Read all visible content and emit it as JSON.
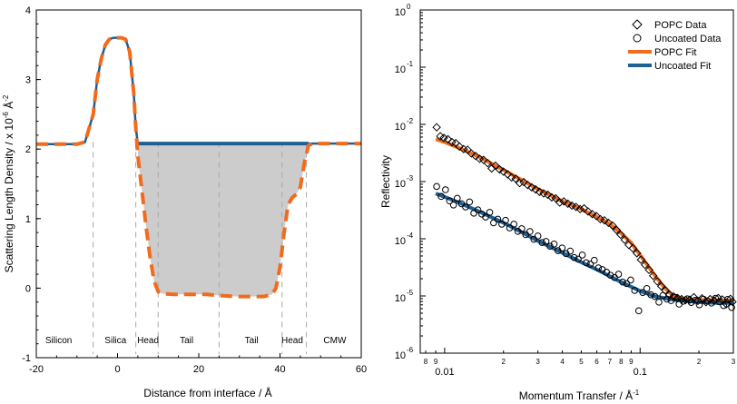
{
  "chart_data": [
    {
      "type": "line",
      "xlabel": "Distance from interface / Å",
      "ylabel": "Scattering Length Density / x 10",
      "ylabel_exp": "-6",
      "ylabel_unit": " Å",
      "ylabel_unit_exp": "-2",
      "xlim": [
        -20,
        60
      ],
      "ylim": [
        -1,
        4
      ],
      "xticks": [
        -20,
        0,
        20,
        40,
        60
      ],
      "yticks": [
        -1,
        0,
        1,
        2,
        3,
        4
      ],
      "regions": [
        {
          "label": "Silicon",
          "x": -14.5
        },
        {
          "label": "Silica",
          "x": -0.5
        },
        {
          "label": "Head",
          "x": 7.5
        },
        {
          "label": "Tail",
          "x": 17
        },
        {
          "label": "Tail",
          "x": 33
        },
        {
          "label": "Head",
          "x": 43
        },
        {
          "label": "CMW",
          "x": 53.5
        }
      ],
      "boundaries": [
        -6,
        4.5,
        10,
        25,
        40.5,
        46.5
      ],
      "series": [
        {
          "name": "",
          "color": "#1f5f94",
          "style": "solid",
          "x": [
            -20,
            -10,
            -8,
            -6,
            -5,
            -4,
            -3,
            -2,
            -1,
            0,
            1,
            2,
            3,
            4,
            4.5,
            5,
            60
          ],
          "y": [
            2.07,
            2.07,
            2.1,
            2.5,
            3.0,
            3.3,
            3.5,
            3.58,
            3.6,
            3.6,
            3.6,
            3.58,
            3.4,
            2.8,
            2.3,
            2.08,
            2.08
          ]
        },
        {
          "name": "",
          "color": "#f26b1d",
          "style": "dashed",
          "x": [
            -20,
            -10,
            -8,
            -6,
            -5,
            -4,
            -3,
            -2,
            -1,
            0,
            1,
            2,
            3,
            4,
            4.5,
            5,
            6,
            7,
            8,
            9,
            10,
            11,
            14,
            18,
            22,
            26,
            30,
            34,
            36,
            38,
            39,
            40,
            41,
            42,
            43,
            44,
            45,
            46,
            47,
            48,
            60
          ],
          "y": [
            2.07,
            2.07,
            2.1,
            2.5,
            3.0,
            3.3,
            3.5,
            3.58,
            3.6,
            3.6,
            3.6,
            3.58,
            3.4,
            2.8,
            2.3,
            1.9,
            1.4,
            0.9,
            0.45,
            0.1,
            -0.05,
            -0.08,
            -0.09,
            -0.09,
            -0.09,
            -0.11,
            -0.12,
            -0.12,
            -0.12,
            -0.09,
            0.0,
            0.3,
            0.8,
            1.2,
            1.3,
            1.35,
            1.45,
            1.8,
            2.05,
            2.08,
            2.08
          ]
        }
      ]
    },
    {
      "type": "scatter",
      "xlabel": "Momentum Transfer / Å",
      "xlabel_exp": "-1",
      "ylabel": "Reflectivity",
      "xscale": "log",
      "yscale": "log",
      "xlim": [
        0.0075,
        0.3
      ],
      "ylim": [
        1e-06,
        1
      ],
      "xmajor": [
        {
          "v": 0.01,
          "label": "0.01"
        },
        {
          "v": 0.1,
          "label": "0.1"
        }
      ],
      "xminor": [
        {
          "v": 0.008,
          "label": "8"
        },
        {
          "v": 0.009,
          "label": "9"
        },
        {
          "v": 0.02,
          "label": "2"
        },
        {
          "v": 0.03,
          "label": "3"
        },
        {
          "v": 0.04,
          "label": "4"
        },
        {
          "v": 0.05,
          "label": "5"
        },
        {
          "v": 0.06,
          "label": "6"
        },
        {
          "v": 0.07,
          "label": "7"
        },
        {
          "v": 0.08,
          "label": "8"
        },
        {
          "v": 0.09,
          "label": "9"
        },
        {
          "v": 0.2,
          "label": "2"
        },
        {
          "v": 0.3,
          "label": "3"
        }
      ],
      "yexps": [
        -6,
        -5,
        -4,
        -3,
        -2,
        -1,
        0
      ],
      "legend_position": "top-right",
      "legend": [
        {
          "label": "POPC Data",
          "marker": "diamond"
        },
        {
          "label": "Uncoated Data",
          "marker": "circle"
        },
        {
          "label": "POPC Fit",
          "color": "#f26b1d"
        },
        {
          "label": "Uncoated Fit",
          "color": "#1f5f94"
        }
      ],
      "series": [
        {
          "name": "POPC Data",
          "marker": "diamond",
          "x": [
            0.0091,
            0.0095,
            0.0099,
            0.0104,
            0.0109,
            0.0114,
            0.0119,
            0.0125,
            0.0131,
            0.0137,
            0.0144,
            0.0151,
            0.0158,
            0.0166,
            0.0174,
            0.0182,
            0.0191,
            0.02,
            0.021,
            0.022,
            0.0231,
            0.0242,
            0.0254,
            0.0266,
            0.0279,
            0.0292,
            0.0306,
            0.0321,
            0.0337,
            0.0353,
            0.037,
            0.0388,
            0.0407,
            0.0427,
            0.0448,
            0.047,
            0.0493,
            0.0517,
            0.0542,
            0.0569,
            0.0597,
            0.0626,
            0.0657,
            0.0689,
            0.0723,
            0.0758,
            0.0795,
            0.0834,
            0.0875,
            0.0918,
            0.0963,
            0.101,
            0.106,
            0.1112,
            0.1167,
            0.1224,
            0.1284,
            0.1347,
            0.1413,
            0.1482,
            0.1555,
            0.1631,
            0.1711,
            0.1795,
            0.1883,
            0.1976,
            0.2073,
            0.2174,
            0.2281,
            0.2393,
            0.251,
            0.2633,
            0.2762,
            0.2898,
            0.3
          ],
          "y": [
            0.0089,
            0.0062,
            0.0058,
            0.0055,
            0.0049,
            0.0047,
            0.0041,
            0.0037,
            0.0036,
            0.0031,
            0.0028,
            0.0025,
            0.0024,
            0.0021,
            0.0017,
            0.0019,
            0.00163,
            0.00149,
            0.00134,
            0.00118,
            0.00112,
            0.00094,
            0.00098,
            0.00087,
            0.00079,
            0.00073,
            0.00066,
            0.00062,
            0.00059,
            0.00053,
            0.00051,
            0.00043,
            0.00045,
            0.00041,
            0.00038,
            0.00036,
            0.00033,
            0.00034,
            0.0003,
            0.00027,
            0.00025,
            0.00022,
            0.00021,
            0.00019,
            0.00017,
            0.000142,
            0.000118,
            9.6e-05,
            7.8e-05,
            6.8e-05,
            5.6e-05,
            4.3e-05,
            3.5e-05,
            2.85e-05,
            2.25e-05,
            1.8e-05,
            1.48e-05,
            1.25e-05,
            1.05e-05,
            9.8e-06,
            9.2e-06,
            8.8e-06,
            8.5e-06,
            8.6e-06,
            9.5e-06,
            8.2e-06,
            9.1e-06,
            7.8e-06,
            8.8e-06,
            8.3e-06,
            9.2e-06,
            8.7e-06,
            7.2e-06,
            8.9e-06,
            7.9e-06
          ]
        },
        {
          "name": "Uncoated Data",
          "marker": "circle",
          "x": [
            0.0091,
            0.0096,
            0.0101,
            0.0106,
            0.0111,
            0.0116,
            0.0122,
            0.0128,
            0.0134,
            0.0141,
            0.0148,
            0.0155,
            0.0162,
            0.017,
            0.0178,
            0.0187,
            0.0196,
            0.0205,
            0.0215,
            0.0226,
            0.0237,
            0.0248,
            0.026,
            0.0273,
            0.0286,
            0.03,
            0.0315,
            0.033,
            0.0346,
            0.0363,
            0.038,
            0.0399,
            0.0418,
            0.0439,
            0.046,
            0.0482,
            0.0506,
            0.053,
            0.0556,
            0.0583,
            0.0612,
            0.0641,
            0.0673,
            0.0705,
            0.074,
            0.0776,
            0.0814,
            0.0853,
            0.0895,
            0.0938,
            0.0984,
            0.1032,
            0.1082,
            0.1135,
            0.119,
            0.1248,
            0.1309,
            0.1373,
            0.144,
            0.151,
            0.1583,
            0.1661,
            0.1741,
            0.1826,
            0.1915,
            0.2009,
            0.2107,
            0.2209,
            0.2317,
            0.243,
            0.2548,
            0.2672,
            0.2803,
            0.294
          ],
          "y": [
            0.00082,
            0.00055,
            0.00072,
            0.00046,
            0.00039,
            0.00051,
            0.00041,
            0.00036,
            0.00044,
            0.00028,
            0.00032,
            0.00027,
            0.00024,
            0.00029,
            0.00019,
            0.00022,
            0.00018,
            0.00021,
            0.000155,
            0.00018,
            0.000135,
            0.00015,
            0.000118,
            0.000134,
            9.8e-05,
            0.000112,
            8.6e-05,
            9e-05,
            7.4e-05,
            8.1e-05,
            6.2e-05,
            6.9e-05,
            5.5e-05,
            6.1e-05,
            4.7e-05,
            4.4e-05,
            5.2e-05,
            3.8e-05,
            3.6e-05,
            4.2e-05,
            3.1e-05,
            2.9e-05,
            2.6e-05,
            2.3e-05,
            2.1e-05,
            2.4e-05,
            1.75e-05,
            1.65e-05,
            1.9e-05,
            1.25e-05,
            5.5e-06,
            1.15e-05,
            1.35e-05,
            1.05e-05,
            9.8e-06,
            7.8e-06,
            1.02e-05,
            8.8e-06,
            8.3e-06,
            9.5e-06,
            7.2e-06,
            8.1e-06,
            8.9e-06,
            7.7e-06,
            8.4e-06,
            7e-06,
            8.8e-06,
            8.2e-06,
            7.5e-06,
            9.1e-06,
            7.9e-06,
            6.8e-06,
            8.7e-06,
            6.3e-06
          ]
        },
        {
          "name": "POPC Fit",
          "color": "#f26b1d",
          "style": "line",
          "x": [
            0.009,
            0.01,
            0.012,
            0.015,
            0.02,
            0.025,
            0.03,
            0.04,
            0.05,
            0.06,
            0.07,
            0.08,
            0.09,
            0.1,
            0.11,
            0.12,
            0.13,
            0.14,
            0.15,
            0.16,
            0.18,
            0.2,
            0.25,
            0.3
          ],
          "y": [
            0.0055,
            0.0049,
            0.0038,
            0.0027,
            0.0016,
            0.00105,
            0.00074,
            0.00045,
            0.00033,
            0.00024,
            0.00018,
            0.000125,
            8.5e-05,
            5.2e-05,
            3.3e-05,
            2.2e-05,
            1.55e-05,
            1.18e-05,
            9.8e-06,
            9.1e-06,
            8.6e-06,
            8.5e-06,
            8.4e-06,
            8.3e-06
          ]
        },
        {
          "name": "Uncoated Fit",
          "color": "#1f5f94",
          "style": "line",
          "x": [
            0.009,
            0.01,
            0.012,
            0.015,
            0.02,
            0.025,
            0.03,
            0.04,
            0.05,
            0.06,
            0.07,
            0.08,
            0.1,
            0.12,
            0.15,
            0.2,
            0.25,
            0.3
          ],
          "y": [
            0.00062,
            0.00054,
            0.00042,
            0.0003,
            0.00019,
            0.000128,
            9.2e-05,
            5.7e-05,
            3.9e-05,
            2.9e-05,
            2.2e-05,
            1.75e-05,
            1.22e-05,
            9.8e-06,
            8.5e-06,
            7.8e-06,
            7.5e-06,
            7.6e-06
          ]
        }
      ]
    }
  ]
}
